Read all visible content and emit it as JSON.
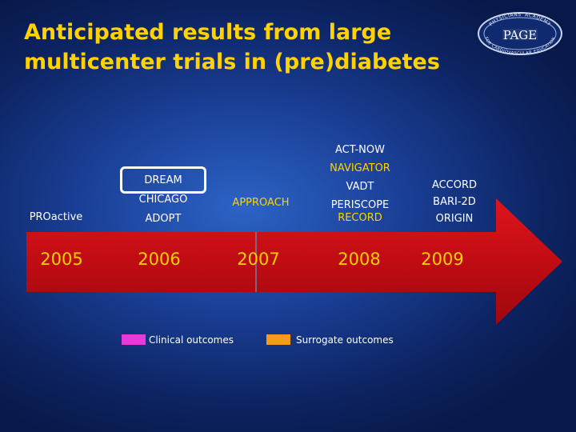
{
  "title_line1": "Anticipated results from large",
  "title_line2": "multicenter trials in (pre)diabetes",
  "logo": {
    "arc_top": "PHYSICIANS' ACADEMY",
    "center": "PAGE",
    "arc_bottom": "FOR CARDIOVASCULAR EDUCATION"
  },
  "colors": {
    "title": "#ffd200",
    "arrow": "#cc0d14",
    "clinical": "#e83ad8",
    "surrogate": "#f59a1c"
  },
  "years": [
    "2005",
    "2006",
    "2007",
    "2008",
    "2009"
  ],
  "trials": {
    "y2005": [
      "PROactive"
    ],
    "y2006": [
      "DREAM",
      "CHICAGO",
      "ADOPT"
    ],
    "y2007": [
      "APPROACH"
    ],
    "y2008": [
      "ACT-NOW",
      "NAVIGATOR",
      "VADT",
      "PERISCOPE",
      "RECORD"
    ],
    "y2009": [
      "ACCORD",
      "BARI-2D",
      "ORIGIN"
    ]
  },
  "legend": {
    "clinical": "Clinical outcomes",
    "surrogate": "Surrogate outcomes"
  }
}
